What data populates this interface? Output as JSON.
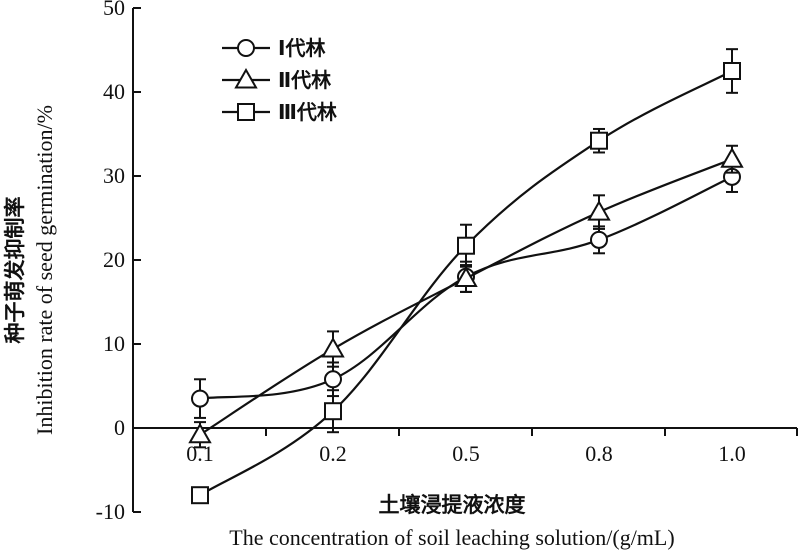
{
  "chart_data": {
    "type": "line",
    "title": "",
    "xlabel_cn": "土壤浸提液浓度",
    "xlabel_en": "The concentration of soil leaching solution/(g/mL)",
    "ylabel_cn": "种子萌发抑制率",
    "ylabel_en": "Inhibition rate of seed germination/%",
    "categories": [
      "0.1",
      "0.2",
      "0.5",
      "0.8",
      "1.0"
    ],
    "ylim": [
      -10,
      50
    ],
    "yticks": [
      -10,
      0,
      10,
      20,
      30,
      40,
      50
    ],
    "grid": false,
    "legend_position": "top-left",
    "series": [
      {
        "name": "Ⅰ代林",
        "marker": "circle",
        "values": [
          3.5,
          5.8,
          18.0,
          22.4,
          29.9
        ],
        "errors": [
          2.3,
          2.0,
          1.8,
          1.6,
          1.8
        ]
      },
      {
        "name": "Ⅱ代林",
        "marker": "triangle",
        "values": [
          -0.8,
          9.4,
          17.8,
          25.7,
          32.0
        ],
        "errors": [
          1.5,
          2.1,
          1.6,
          2.0,
          1.6
        ]
      },
      {
        "name": "Ⅲ代林",
        "marker": "square",
        "values": [
          -8.0,
          2.0,
          21.7,
          34.2,
          42.5
        ],
        "errors": [
          0.0,
          2.5,
          2.5,
          1.4,
          2.6
        ]
      }
    ]
  }
}
